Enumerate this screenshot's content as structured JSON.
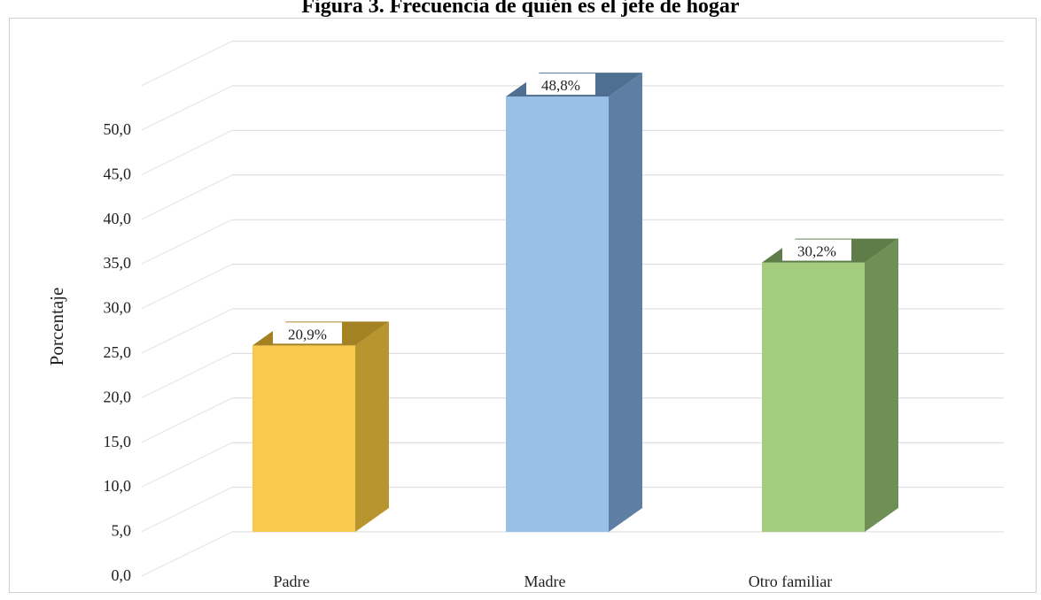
{
  "chart_data": {
    "type": "bar",
    "title": "Figura 3. Frecuencia de quién es el jefe de hogar",
    "ylabel": "Porcentaje",
    "xlabel": "",
    "categories": [
      "Padre",
      "Madre",
      "Otro familiar"
    ],
    "values": [
      20.9,
      48.8,
      30.2
    ],
    "data_labels": [
      "20,9%",
      "48,8%",
      "30,2%"
    ],
    "yticks": [
      "0,0",
      "5,0",
      "10,0",
      "15,0",
      "20,0",
      "25,0",
      "30,0",
      "35,0",
      "40,0",
      "45,0",
      "50,0"
    ],
    "ylim": [
      0,
      55
    ],
    "grid": true,
    "style": "3d-column",
    "colors": [
      {
        "front": "#f9c94d",
        "side": "#b8952e",
        "top": "#a48123"
      },
      {
        "front": "#99c0e6",
        "side": "#5e7fa3",
        "top": "#4f6f92"
      },
      {
        "front": "#a3cc7f",
        "side": "#6e8f55",
        "top": "#5f7d48"
      }
    ]
  }
}
